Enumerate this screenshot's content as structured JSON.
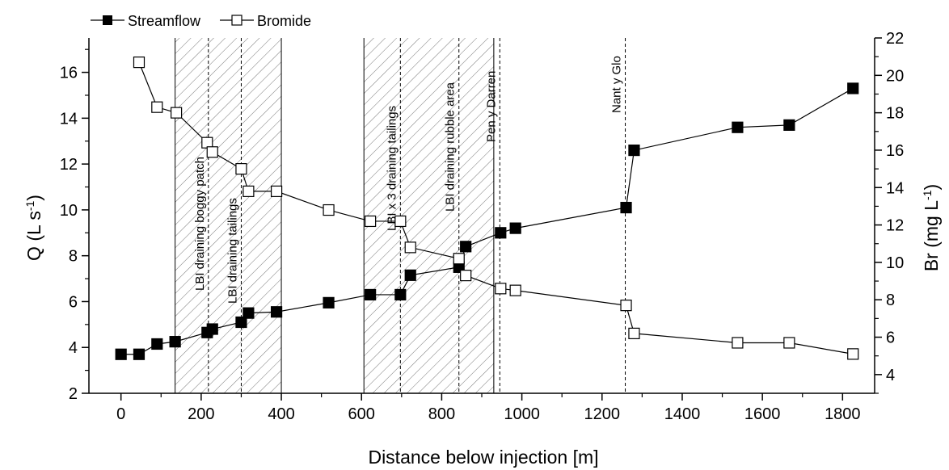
{
  "chart_data": {
    "type": "line",
    "xlabel": "Distance below injection [m]",
    "ylabel_left": "Q (L s",
    "ylabel_left_sup": "-1",
    "ylabel_left_close": ")",
    "ylabel_right": "Br (mg L",
    "ylabel_right_sup": "-1",
    "ylabel_right_close": ")",
    "xlim": [
      -80,
      1880
    ],
    "ylim_left": [
      2,
      17.5
    ],
    "ylim_right": [
      3,
      22
    ],
    "x_ticks": [
      0,
      200,
      400,
      600,
      800,
      1000,
      1200,
      1400,
      1600,
      1800
    ],
    "y_ticks_left": [
      2,
      4,
      6,
      8,
      10,
      12,
      14,
      16
    ],
    "y_ticks_right": [
      4,
      6,
      8,
      10,
      12,
      14,
      16,
      18,
      20,
      22
    ],
    "grid": false,
    "legend_position": "top-left",
    "series": [
      {
        "name": "Streamflow",
        "axis": "left",
        "marker": "filled-square",
        "color": "#000000",
        "x": [
          0,
          45,
          90,
          135,
          215,
          228,
          300,
          318,
          388,
          518,
          622,
          697,
          722,
          843,
          860,
          947,
          984,
          1260,
          1280,
          1538,
          1667,
          1826
        ],
        "y": [
          3.7,
          3.7,
          4.15,
          4.25,
          4.65,
          4.8,
          5.1,
          5.5,
          5.55,
          5.95,
          6.3,
          6.3,
          7.15,
          7.5,
          8.4,
          9.0,
          9.2,
          10.1,
          12.6,
          13.6,
          13.7,
          15.3
        ]
      },
      {
        "name": "Bromide",
        "axis": "right",
        "marker": "open-square",
        "color": "#000000",
        "x": [
          45,
          90,
          138,
          215,
          228,
          300,
          318,
          388,
          518,
          622,
          697,
          722,
          843,
          860,
          947,
          984,
          1260,
          1280,
          1538,
          1667,
          1826
        ],
        "y": [
          20.7,
          18.3,
          18.0,
          16.4,
          15.9,
          15.0,
          13.8,
          13.8,
          12.8,
          12.2,
          12.2,
          10.8,
          10.2,
          9.3,
          8.6,
          8.5,
          7.7,
          6.2,
          5.7,
          5.7,
          5.1
        ]
      }
    ],
    "shaded_regions": [
      {
        "x0": 135,
        "x1": 400
      },
      {
        "x0": 606,
        "x1": 930
      }
    ],
    "vertical_lines": [
      {
        "x": 218,
        "label": "LBI draining boggy patch"
      },
      {
        "x": 300,
        "label": "LBI draining tailings"
      },
      {
        "x": 697,
        "label": "LBI x 3 draining tailings"
      },
      {
        "x": 843,
        "label": "LBI draining rubble area"
      },
      {
        "x": 945,
        "label": "Pen y Darren"
      },
      {
        "x": 1258,
        "label": "Nant y Glo"
      }
    ]
  }
}
